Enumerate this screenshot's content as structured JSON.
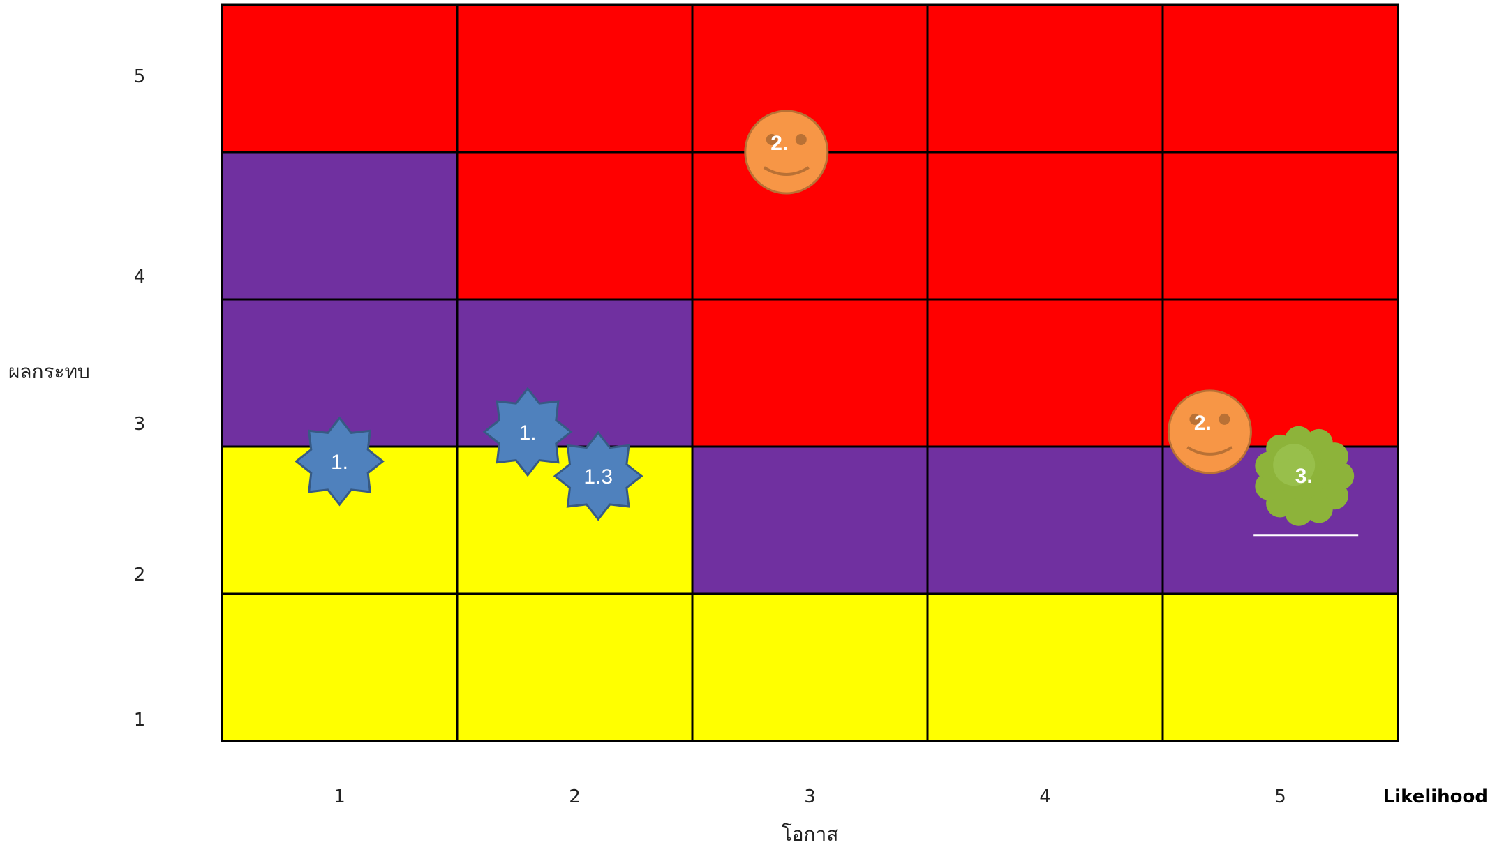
{
  "chart_data": {
    "type": "heatmap",
    "x_ticks": [
      "1",
      "2",
      "3",
      "4",
      "5"
    ],
    "y_ticks": [
      "1",
      "2",
      "3",
      "4",
      "5"
    ],
    "xlabel": "โอกาส",
    "ylabel": "ผลกระทบ",
    "x_corner_label": "Likelihood",
    "colors": {
      "red": "#ff0000",
      "purple": "#7030a0",
      "yellow": "#ffff00"
    },
    "grid": [
      {
        "impact": 5,
        "cells": [
          "red",
          "red",
          "red",
          "red",
          "red"
        ]
      },
      {
        "impact": 4,
        "cells": [
          "purple",
          "red",
          "red",
          "red",
          "red"
        ]
      },
      {
        "impact": 3,
        "cells": [
          "purple",
          "purple",
          "red",
          "red",
          "red"
        ]
      },
      {
        "impact": 2,
        "cells": [
          "yellow",
          "yellow",
          "purple",
          "purple",
          "purple"
        ]
      },
      {
        "impact": 1,
        "cells": [
          "yellow",
          "yellow",
          "yellow",
          "yellow",
          "yellow"
        ]
      }
    ],
    "markers": [
      {
        "label": "1.",
        "shape": "star",
        "color": "#4f81bd",
        "x": 1.0,
        "y": 2.4
      },
      {
        "label": "1.",
        "shape": "star",
        "color": "#4f81bd",
        "x": 1.8,
        "y": 2.6
      },
      {
        "label": "1.3",
        "shape": "star",
        "color": "#4f81bd",
        "x": 2.1,
        "y": 2.3
      },
      {
        "label": "2.",
        "shape": "smiley",
        "color": "#f79646",
        "x": 2.9,
        "y": 4.5
      },
      {
        "label": "2.",
        "shape": "smiley",
        "color": "#f79646",
        "x": 4.7,
        "y": 2.6
      },
      {
        "label": "3.",
        "shape": "cloud",
        "color": "#8db33a",
        "x": 5.1,
        "y": 2.3
      }
    ]
  }
}
